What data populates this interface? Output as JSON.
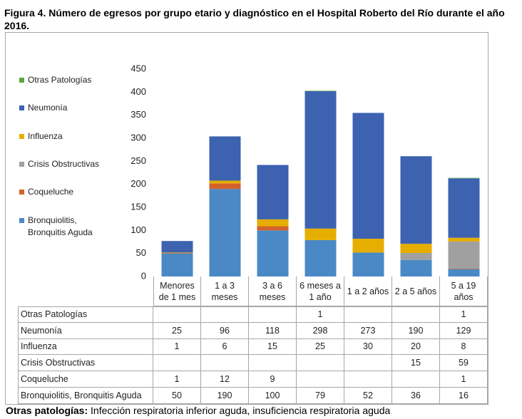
{
  "chart_data": {
    "type": "stacked_bar",
    "title": "Figura 4. Número de egresos por grupo etario y diagnóstico en el Hospital Roberto del Río durante el año 2016.",
    "categories": [
      "Menores de 1 mes",
      "1 a 3 meses",
      "3 a 6 meses",
      "6 meses a 1 año",
      "1 a 2 años",
      "2 a 5 años",
      "5 a 19 años"
    ],
    "series": [
      {
        "name": "Bronquiolitis, Bronquitis Aguda",
        "color": "#4a89c5",
        "values": [
          50,
          190,
          100,
          79,
          52,
          36,
          16
        ]
      },
      {
        "name": "Coqueluche",
        "color": "#d2622a",
        "values": [
          1,
          12,
          9,
          null,
          null,
          null,
          1
        ]
      },
      {
        "name": "Crisis Obstructivas",
        "color": "#a0a0a0",
        "values": [
          null,
          null,
          null,
          null,
          null,
          15,
          59
        ]
      },
      {
        "name": "Influenza",
        "color": "#e6ae00",
        "values": [
          1,
          6,
          15,
          25,
          30,
          20,
          8
        ]
      },
      {
        "name": "Neumonía",
        "color": "#3c62b0",
        "values": [
          25,
          96,
          118,
          298,
          273,
          190,
          129
        ]
      },
      {
        "name": "Otras Patologías",
        "color": "#5ba33c",
        "values": [
          null,
          null,
          null,
          1,
          null,
          null,
          1
        ]
      }
    ],
    "ylim": [
      0,
      450
    ],
    "yticks": [
      0,
      50,
      100,
      150,
      200,
      250,
      300,
      350,
      400,
      450
    ],
    "note": {
      "label": "Otras patologías:",
      "text": "Infección respiratoria inferior aguda, insuficiencia respiratoria aguda"
    }
  }
}
